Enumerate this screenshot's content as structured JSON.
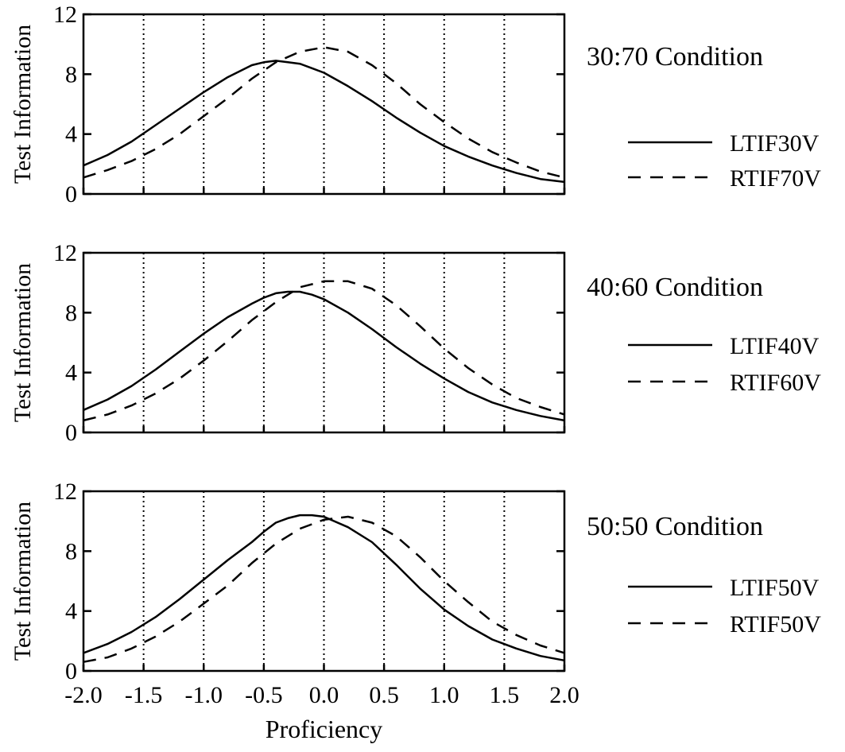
{
  "chart_data": [
    {
      "type": "line",
      "title": "30:70 Condition",
      "ylabel": "Test Information",
      "xlabel": "",
      "xlim": [
        -2.0,
        2.0
      ],
      "ylim": [
        0,
        12
      ],
      "yticks": [
        "0",
        "4",
        "8",
        "12"
      ],
      "xticks": [],
      "vertical_gridlines": [
        -1.5,
        -1.0,
        -0.5,
        0.0,
        0.5,
        1.0,
        1.5
      ],
      "legend_position": "right",
      "series": [
        {
          "name": "LTIF30V",
          "style": "solid",
          "x": [
            -2.0,
            -1.8,
            -1.6,
            -1.4,
            -1.2,
            -1.0,
            -0.8,
            -0.6,
            -0.5,
            -0.4,
            -0.3,
            -0.2,
            -0.1,
            0.0,
            0.2,
            0.4,
            0.6,
            0.8,
            1.0,
            1.2,
            1.4,
            1.6,
            1.8,
            2.0
          ],
          "y": [
            1.9,
            2.6,
            3.5,
            4.6,
            5.7,
            6.8,
            7.8,
            8.6,
            8.8,
            8.9,
            8.8,
            8.7,
            8.4,
            8.1,
            7.2,
            6.2,
            5.1,
            4.1,
            3.2,
            2.5,
            1.9,
            1.4,
            1.0,
            0.8
          ]
        },
        {
          "name": "RTIF70V",
          "style": "dashed",
          "x": [
            -2.0,
            -1.8,
            -1.6,
            -1.4,
            -1.2,
            -1.0,
            -0.8,
            -0.6,
            -0.4,
            -0.2,
            0.0,
            0.2,
            0.4,
            0.6,
            0.8,
            1.0,
            1.2,
            1.4,
            1.6,
            1.8,
            2.0
          ],
          "y": [
            1.1,
            1.6,
            2.2,
            3.0,
            4.0,
            5.2,
            6.4,
            7.7,
            8.8,
            9.5,
            9.8,
            9.5,
            8.6,
            7.4,
            6.0,
            4.8,
            3.7,
            2.8,
            2.1,
            1.5,
            1.1
          ]
        }
      ]
    },
    {
      "type": "line",
      "title": "40:60 Condition",
      "ylabel": "Test Information",
      "xlabel": "",
      "xlim": [
        -2.0,
        2.0
      ],
      "ylim": [
        0,
        12
      ],
      "yticks": [
        "0",
        "4",
        "8",
        "12"
      ],
      "xticks": [],
      "vertical_gridlines": [
        -1.5,
        -1.0,
        -0.5,
        0.0,
        0.5,
        1.0,
        1.5
      ],
      "legend_position": "right",
      "series": [
        {
          "name": "LTIF40V",
          "style": "solid",
          "x": [
            -2.0,
            -1.8,
            -1.6,
            -1.4,
            -1.2,
            -1.0,
            -0.8,
            -0.6,
            -0.5,
            -0.4,
            -0.3,
            -0.2,
            -0.1,
            0.0,
            0.2,
            0.4,
            0.6,
            0.8,
            1.0,
            1.2,
            1.4,
            1.6,
            1.8,
            2.0
          ],
          "y": [
            1.5,
            2.2,
            3.1,
            4.2,
            5.4,
            6.6,
            7.7,
            8.6,
            9.0,
            9.3,
            9.4,
            9.4,
            9.2,
            8.9,
            8.0,
            6.9,
            5.7,
            4.6,
            3.6,
            2.7,
            2.0,
            1.5,
            1.1,
            0.8
          ]
        },
        {
          "name": "RTIF60V",
          "style": "dashed",
          "x": [
            -2.0,
            -1.8,
            -1.6,
            -1.4,
            -1.2,
            -1.0,
            -0.8,
            -0.6,
            -0.4,
            -0.2,
            0.0,
            0.2,
            0.4,
            0.6,
            0.8,
            1.0,
            1.2,
            1.4,
            1.6,
            1.8,
            2.0
          ],
          "y": [
            0.8,
            1.2,
            1.8,
            2.6,
            3.6,
            4.8,
            6.1,
            7.5,
            8.7,
            9.7,
            10.1,
            10.1,
            9.6,
            8.5,
            7.1,
            5.6,
            4.3,
            3.2,
            2.3,
            1.7,
            1.2
          ]
        }
      ]
    },
    {
      "type": "line",
      "title": "50:50 Condition",
      "ylabel": "Test Information",
      "xlabel": "Proficiency",
      "xlim": [
        -2.0,
        2.0
      ],
      "ylim": [
        0,
        12
      ],
      "yticks": [
        "0",
        "4",
        "8",
        "12"
      ],
      "xticks": [
        "-2.0",
        "-1.5",
        "-1.0",
        "-0.5",
        "0.0",
        "0.5",
        "1.0",
        "1.5",
        "2.0"
      ],
      "vertical_gridlines": [
        -1.5,
        -1.0,
        -0.5,
        0.0,
        0.5,
        1.0,
        1.5
      ],
      "legend_position": "right",
      "series": [
        {
          "name": "LTIF50V",
          "style": "solid",
          "x": [
            -2.0,
            -1.8,
            -1.6,
            -1.4,
            -1.2,
            -1.0,
            -0.8,
            -0.6,
            -0.5,
            -0.4,
            -0.3,
            -0.2,
            -0.1,
            0.0,
            0.2,
            0.4,
            0.6,
            0.8,
            1.0,
            1.2,
            1.4,
            1.6,
            1.8,
            2.0
          ],
          "y": [
            1.2,
            1.8,
            2.6,
            3.6,
            4.8,
            6.1,
            7.4,
            8.6,
            9.3,
            9.9,
            10.2,
            10.4,
            10.4,
            10.3,
            9.6,
            8.6,
            7.1,
            5.5,
            4.1,
            3.0,
            2.1,
            1.5,
            1.0,
            0.7
          ]
        },
        {
          "name": "RTIF50V",
          "style": "dashed",
          "x": [
            -2.0,
            -1.8,
            -1.6,
            -1.4,
            -1.2,
            -1.0,
            -0.8,
            -0.6,
            -0.4,
            -0.2,
            0.0,
            0.2,
            0.4,
            0.6,
            0.8,
            1.0,
            1.2,
            1.4,
            1.6,
            1.8,
            2.0
          ],
          "y": [
            0.6,
            0.9,
            1.5,
            2.3,
            3.3,
            4.5,
            5.7,
            7.2,
            8.5,
            9.5,
            10.1,
            10.3,
            9.9,
            9.0,
            7.6,
            6.0,
            4.6,
            3.3,
            2.4,
            1.7,
            1.2
          ]
        }
      ]
    }
  ]
}
